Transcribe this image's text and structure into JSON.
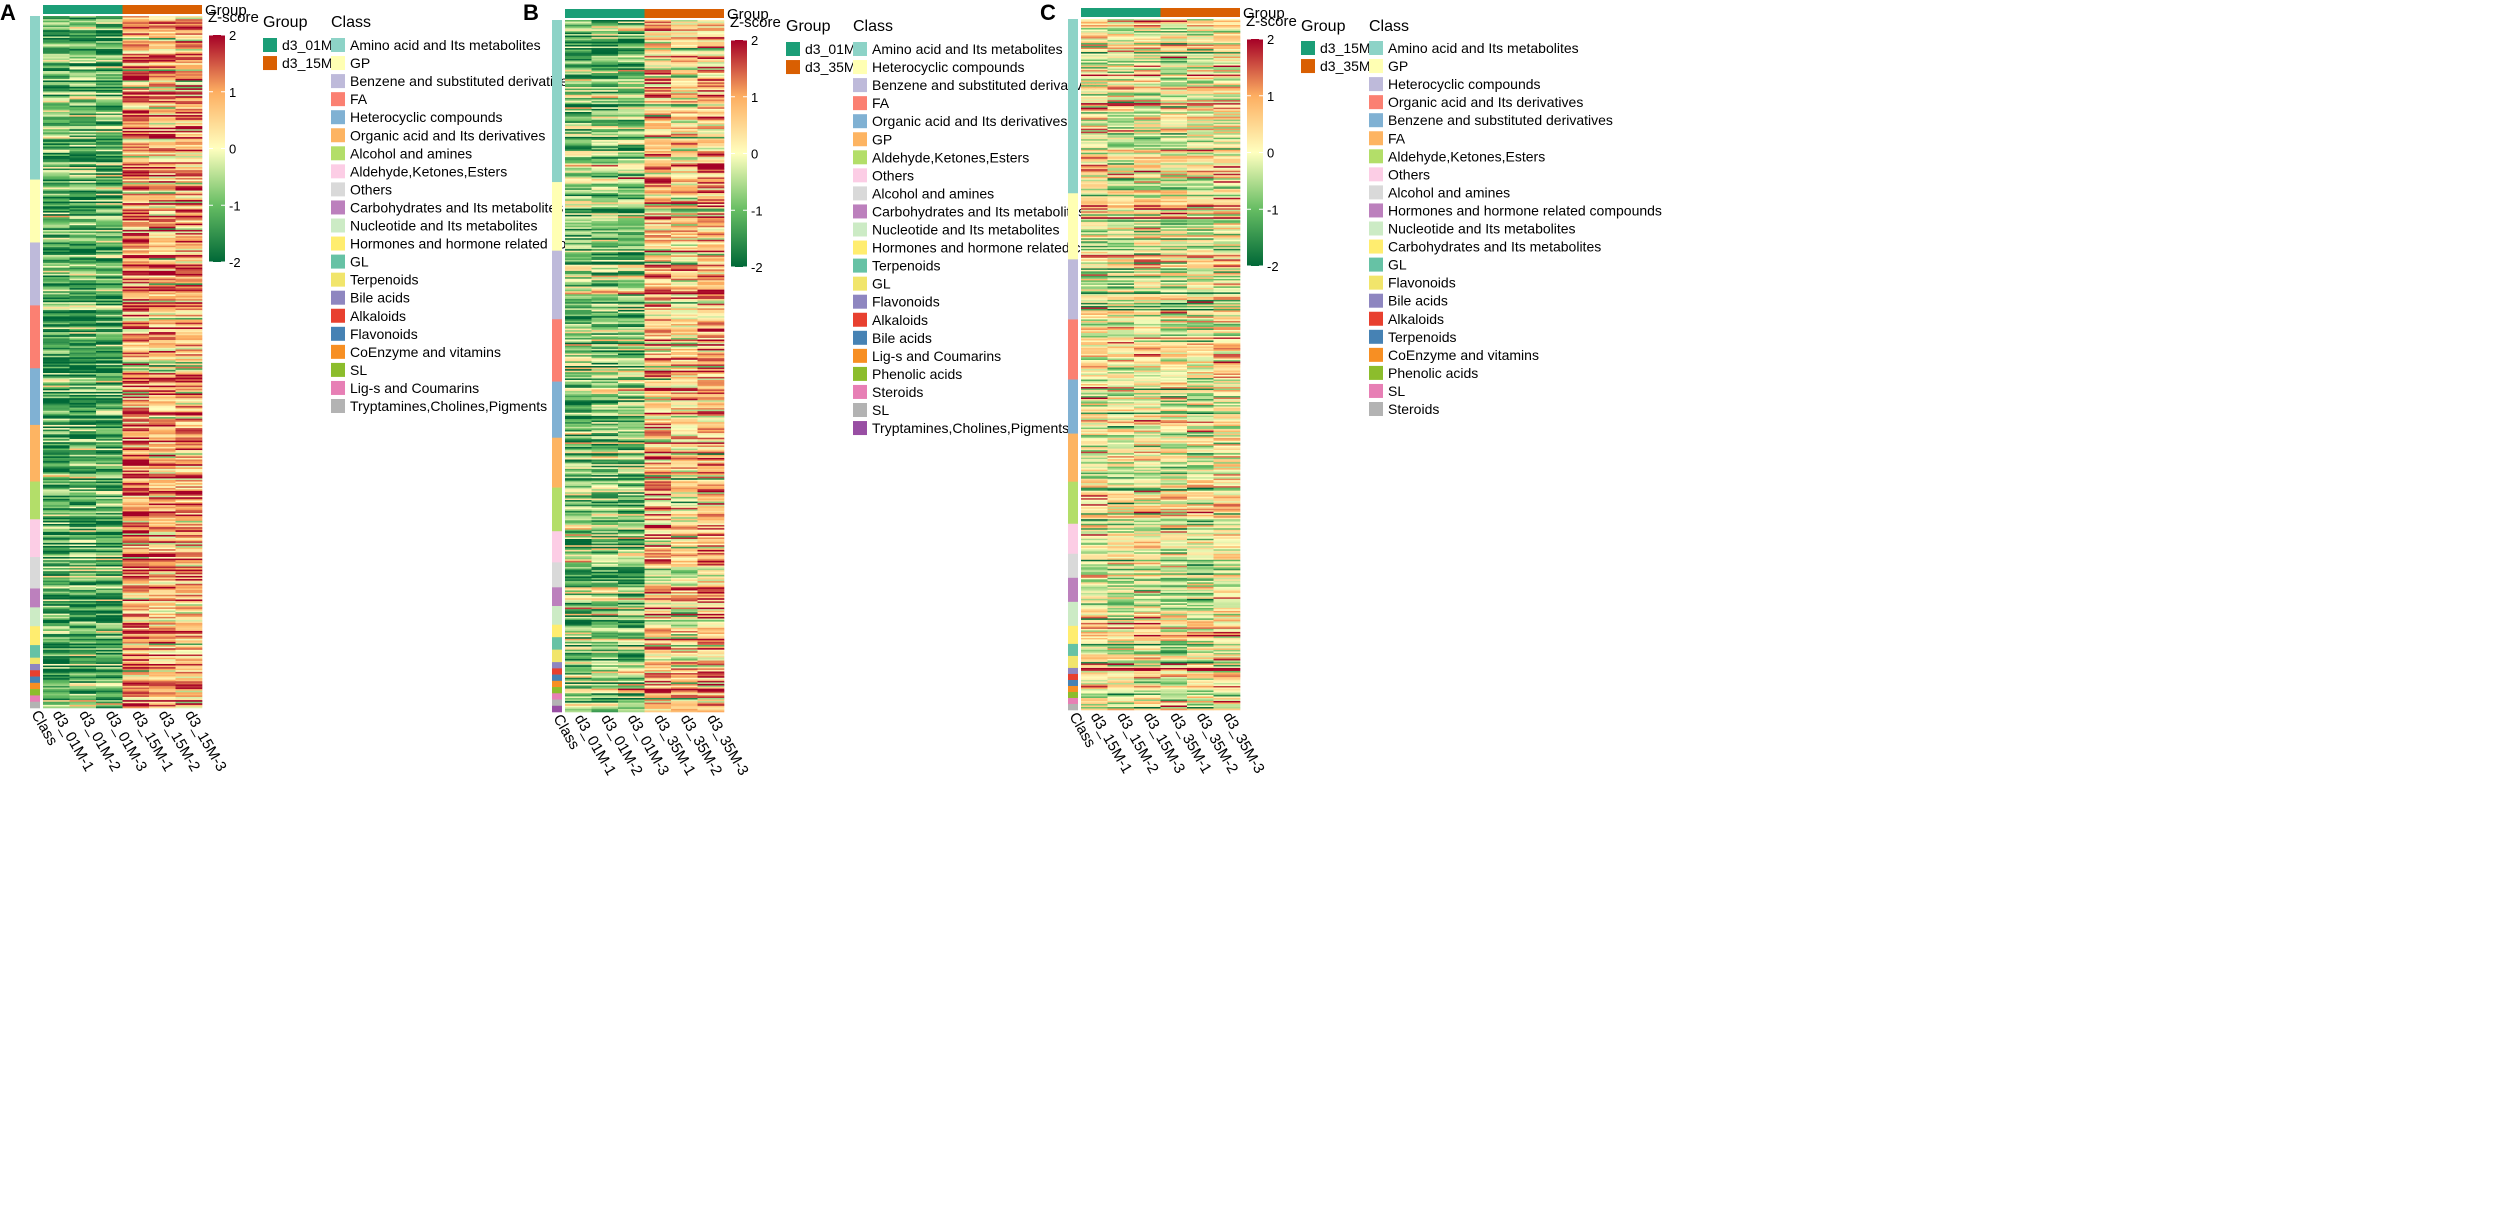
{
  "figure": {
    "type": "heatmap",
    "panels": [
      {
        "label": "A",
        "group_title": "Group",
        "zscore_title": "Z-score",
        "group_legend_title": "Group",
        "class_legend_title": "Class",
        "groups": [
          {
            "name": "d3_01M",
            "color": "#1b9e77"
          },
          {
            "name": "d3_15M",
            "color": "#d95f02"
          }
        ],
        "columns": [
          "Class",
          "d3_01M-1",
          "d3_01M-2",
          "d3_01M-3",
          "d3_15M-1",
          "d3_15M-2",
          "d3_15M-3"
        ],
        "zscore": {
          "min": -2,
          "max": 2,
          "ticks": [
            "2",
            "1",
            "0",
            "-1",
            "-2"
          ]
        },
        "classes": [
          {
            "name": "Amino acid and Its metabolites",
            "color": "#8dd3c7",
            "rows": 26
          },
          {
            "name": "GP",
            "color": "#ffffb3",
            "rows": 10
          },
          {
            "name": "Benzene and substituted derivatives",
            "color": "#bebada",
            "rows": 10
          },
          {
            "name": "FA",
            "color": "#fb8072",
            "rows": 10
          },
          {
            "name": "Heterocyclic compounds",
            "color": "#80b1d3",
            "rows": 9
          },
          {
            "name": "Organic acid and Its derivatives",
            "color": "#fdb462",
            "rows": 9
          },
          {
            "name": "Alcohol and amines",
            "color": "#b3de69",
            "rows": 6
          },
          {
            "name": "Aldehyde,Ketones,Esters",
            "color": "#fccde5",
            "rows": 6
          },
          {
            "name": "Others",
            "color": "#d9d9d9",
            "rows": 5
          },
          {
            "name": "Carbohydrates and Its metabolites",
            "color": "#bc80bd",
            "rows": 3
          },
          {
            "name": "Nucleotide and Its metabolites",
            "color": "#ccebc5",
            "rows": 3
          },
          {
            "name": "Hormones and hormone related compounds",
            "color": "#ffed6f",
            "rows": 3
          },
          {
            "name": "GL",
            "color": "#66c2a5",
            "rows": 2
          },
          {
            "name": "Terpenoids",
            "color": "#f1e56b",
            "rows": 1
          },
          {
            "name": "Bile acids",
            "color": "#8e86c0",
            "rows": 1
          },
          {
            "name": "Alkaloids",
            "color": "#e8402f",
            "rows": 1
          },
          {
            "name": "Flavonoids",
            "color": "#4682b4",
            "rows": 1
          },
          {
            "name": "CoEnzyme and vitamins",
            "color": "#f78f23",
            "rows": 1
          },
          {
            "name": "SL",
            "color": "#8cbd2c",
            "rows": 1
          },
          {
            "name": "Lig-s and Coumarins",
            "color": "#e77fb5",
            "rows": 1
          },
          {
            "name": "Tryptamines,Cholines,Pigments",
            "color": "#b3b3b3",
            "rows": 1
          }
        ],
        "column_bias": [
          -1.2,
          -1.2,
          -1.2,
          1.2,
          0.9,
          0.9
        ]
      },
      {
        "label": "B",
        "group_title": "Group",
        "zscore_title": "Z-score",
        "group_legend_title": "Group",
        "class_legend_title": "Class",
        "groups": [
          {
            "name": "d3_01M",
            "color": "#1b9e77"
          },
          {
            "name": "d3_35M",
            "color": "#d95f02"
          }
        ],
        "columns": [
          "Class",
          "d3_01M-1",
          "d3_01M-2",
          "d3_01M-3",
          "d3_35M-1",
          "d3_35M-2",
          "d3_35M-3"
        ],
        "zscore": {
          "min": -2,
          "max": 2,
          "ticks": [
            "2",
            "1",
            "0",
            "-1",
            "-2"
          ]
        },
        "classes": [
          {
            "name": "Amino acid and Its metabolites",
            "color": "#8dd3c7",
            "rows": 26
          },
          {
            "name": "Heterocyclic compounds",
            "color": "#ffffb3",
            "rows": 11
          },
          {
            "name": "Benzene and substituted derivatives",
            "color": "#bebada",
            "rows": 11
          },
          {
            "name": "FA",
            "color": "#fb8072",
            "rows": 10
          },
          {
            "name": "Organic acid and Its derivatives",
            "color": "#80b1d3",
            "rows": 9
          },
          {
            "name": "GP",
            "color": "#fdb462",
            "rows": 8
          },
          {
            "name": "Aldehyde,Ketones,Esters",
            "color": "#b3de69",
            "rows": 7
          },
          {
            "name": "Others",
            "color": "#fccde5",
            "rows": 5
          },
          {
            "name": "Alcohol and amines",
            "color": "#d9d9d9",
            "rows": 4
          },
          {
            "name": "Carbohydrates and Its metabolites",
            "color": "#bc80bd",
            "rows": 3
          },
          {
            "name": "Nucleotide and Its metabolites",
            "color": "#ccebc5",
            "rows": 3
          },
          {
            "name": "Hormones and hormone related compounds",
            "color": "#ffed6f",
            "rows": 2
          },
          {
            "name": "Terpenoids",
            "color": "#66c2a5",
            "rows": 2
          },
          {
            "name": "GL",
            "color": "#f1e56b",
            "rows": 2
          },
          {
            "name": "Flavonoids",
            "color": "#8e86c0",
            "rows": 1
          },
          {
            "name": "Alkaloids",
            "color": "#e8402f",
            "rows": 1
          },
          {
            "name": "Bile acids",
            "color": "#4682b4",
            "rows": 1
          },
          {
            "name": "Lig-s and Coumarins",
            "color": "#f78f23",
            "rows": 1
          },
          {
            "name": "Phenolic acids",
            "color": "#8cbd2c",
            "rows": 1
          },
          {
            "name": "Steroids",
            "color": "#e77fb5",
            "rows": 1
          },
          {
            "name": "SL",
            "color": "#b3b3b3",
            "rows": 1
          },
          {
            "name": "Tryptamines,Cholines,Pigments",
            "color": "#984ea3",
            "rows": 1
          }
        ],
        "column_bias": [
          -0.8,
          -0.8,
          -0.8,
          0.7,
          0.4,
          0.8
        ]
      },
      {
        "label": "C",
        "group_title": "Group",
        "zscore_title": "Z-score",
        "group_legend_title": "Group",
        "class_legend_title": "Class",
        "groups": [
          {
            "name": "d3_15M",
            "color": "#1b9e77"
          },
          {
            "name": "d3_35M",
            "color": "#d95f02"
          }
        ],
        "columns": [
          "Class",
          "d3_15M-1",
          "d3_15M-2",
          "d3_15M-3",
          "d3_35M-1",
          "d3_35M-2",
          "d3_35M-3"
        ],
        "zscore": {
          "min": -2,
          "max": 2,
          "ticks": [
            "2",
            "1",
            "0",
            "-1",
            "-2"
          ]
        },
        "classes": [
          {
            "name": "Amino acid and Its metabolites",
            "color": "#8dd3c7",
            "rows": 29
          },
          {
            "name": "GP",
            "color": "#ffffb3",
            "rows": 11
          },
          {
            "name": "Heterocyclic compounds",
            "color": "#bebada",
            "rows": 10
          },
          {
            "name": "Organic acid and Its derivatives",
            "color": "#fb8072",
            "rows": 10
          },
          {
            "name": "Benzene and substituted derivatives",
            "color": "#80b1d3",
            "rows": 9
          },
          {
            "name": "FA",
            "color": "#fdb462",
            "rows": 8
          },
          {
            "name": "Aldehyde,Ketones,Esters",
            "color": "#b3de69",
            "rows": 7
          },
          {
            "name": "Others",
            "color": "#fccde5",
            "rows": 5
          },
          {
            "name": "Alcohol and amines",
            "color": "#d9d9d9",
            "rows": 4
          },
          {
            "name": "Hormones and hormone related compounds",
            "color": "#bc80bd",
            "rows": 4
          },
          {
            "name": "Nucleotide and Its metabolites",
            "color": "#ccebc5",
            "rows": 4
          },
          {
            "name": "Carbohydrates and Its metabolites",
            "color": "#ffed6f",
            "rows": 3
          },
          {
            "name": "GL",
            "color": "#66c2a5",
            "rows": 2
          },
          {
            "name": "Flavonoids",
            "color": "#f1e56b",
            "rows": 2
          },
          {
            "name": "Bile acids",
            "color": "#8e86c0",
            "rows": 1
          },
          {
            "name": "Alkaloids",
            "color": "#e8402f",
            "rows": 1
          },
          {
            "name": "Terpenoids",
            "color": "#4682b4",
            "rows": 1
          },
          {
            "name": "CoEnzyme and vitamins",
            "color": "#f78f23",
            "rows": 1
          },
          {
            "name": "Phenolic acids",
            "color": "#8cbd2c",
            "rows": 1
          },
          {
            "name": "SL",
            "color": "#e77fb5",
            "rows": 1
          },
          {
            "name": "Steroids",
            "color": "#b3b3b3",
            "rows": 1
          }
        ],
        "column_bias": [
          0.1,
          0.0,
          0.1,
          -0.1,
          0.0,
          0.2
        ]
      }
    ]
  }
}
